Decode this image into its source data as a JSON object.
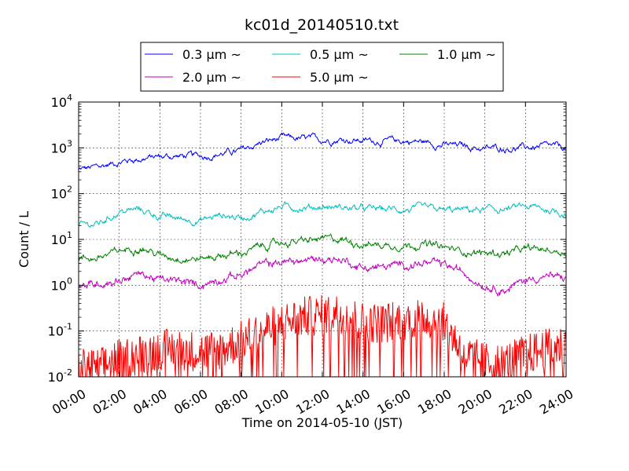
{
  "chart_data": {
    "type": "line",
    "title": "kc01d_20140510.txt",
    "xlabel": "Time on 2014-05-10 (JST)",
    "ylabel": "Count / L",
    "yscale": "log",
    "ylim": [
      0.01,
      10000
    ],
    "xlim_hours": [
      0,
      24
    ],
    "grid": true,
    "legend_position": "top-center",
    "x_ticks": [
      "00:00",
      "02:00",
      "04:00",
      "06:00",
      "08:00",
      "10:00",
      "12:00",
      "14:00",
      "16:00",
      "18:00",
      "20:00",
      "22:00",
      "24:00"
    ],
    "y_ticks": [
      {
        "base": "10",
        "exp": "-2",
        "value": 0.01
      },
      {
        "base": "10",
        "exp": "-1",
        "value": 0.1
      },
      {
        "base": "10",
        "exp": "0",
        "value": 1
      },
      {
        "base": "10",
        "exp": "1",
        "value": 10
      },
      {
        "base": "10",
        "exp": "2",
        "value": 100
      },
      {
        "base": "10",
        "exp": "3",
        "value": 1000
      },
      {
        "base": "10",
        "exp": "4",
        "value": 10000
      }
    ],
    "series": [
      {
        "name": "0.3 μm ~",
        "color": "#0000ff",
        "x": [
          0,
          1,
          2,
          3,
          4,
          5,
          6,
          7,
          8,
          9,
          10,
          11,
          12,
          13,
          14,
          15,
          16,
          17,
          18,
          19,
          20,
          21,
          22,
          23,
          24
        ],
        "values": [
          330,
          380,
          500,
          580,
          640,
          660,
          650,
          750,
          850,
          1300,
          1600,
          1550,
          1500,
          1550,
          1450,
          1400,
          1400,
          1350,
          1150,
          1100,
          950,
          1000,
          1000,
          1050,
          1000
        ]
      },
      {
        "name": "0.5 μm ~",
        "color": "#00bfbf",
        "x": [
          0,
          1,
          2,
          3,
          4,
          5,
          6,
          7,
          8,
          9,
          10,
          11,
          12,
          13,
          14,
          15,
          16,
          17,
          18,
          19,
          20,
          21,
          22,
          23,
          24
        ],
        "values": [
          20,
          22,
          40,
          45,
          32,
          28,
          26,
          34,
          30,
          40,
          52,
          50,
          52,
          50,
          46,
          46,
          45,
          46,
          42,
          44,
          44,
          45,
          52,
          45,
          37
        ]
      },
      {
        "name": "1.0 μm ~",
        "color": "#008000",
        "x": [
          0,
          1,
          2,
          3,
          4,
          5,
          6,
          7,
          8,
          9,
          10,
          11,
          12,
          13,
          14,
          15,
          16,
          17,
          18,
          19,
          20,
          21,
          22,
          23,
          24
        ],
        "values": [
          3.7,
          4,
          5.5,
          7,
          4.5,
          4,
          3.8,
          4.5,
          5,
          7,
          8.5,
          9,
          10,
          10,
          8,
          7.5,
          7.5,
          8,
          6.5,
          5.5,
          5,
          5,
          6,
          6,
          5.2
        ]
      },
      {
        "name": "2.0 μm ~",
        "color": "#bf00bf",
        "x": [
          0,
          1,
          2,
          3,
          4,
          5,
          6,
          7,
          8,
          9,
          10,
          11,
          12,
          13,
          14,
          15,
          16,
          17,
          18,
          19,
          20,
          21,
          22,
          23,
          24
        ],
        "values": [
          0.9,
          1.1,
          1.3,
          1.8,
          1.3,
          1.2,
          1,
          1.4,
          1.7,
          2.8,
          3.2,
          3.4,
          3.8,
          3.6,
          2.4,
          2.5,
          2.8,
          3,
          2.8,
          1.8,
          1,
          0.8,
          1.3,
          1.6,
          1.4
        ]
      },
      {
        "name": "5.0 μm ~",
        "color": "#ff0000",
        "x": [
          0,
          1,
          2,
          3,
          4,
          5,
          6,
          7,
          8,
          9,
          10,
          11,
          12,
          13,
          14,
          15,
          16,
          17,
          18,
          19,
          20,
          21,
          22,
          23,
          24
        ],
        "values": [
          0.015,
          0.015,
          0.025,
          0.03,
          0.04,
          0.04,
          0.035,
          0.04,
          0.06,
          0.1,
          0.15,
          0.2,
          0.22,
          0.25,
          0.15,
          0.15,
          0.18,
          0.2,
          0.15,
          0.03,
          0.02,
          0.02,
          0.03,
          0.04,
          0.05
        ]
      }
    ]
  }
}
